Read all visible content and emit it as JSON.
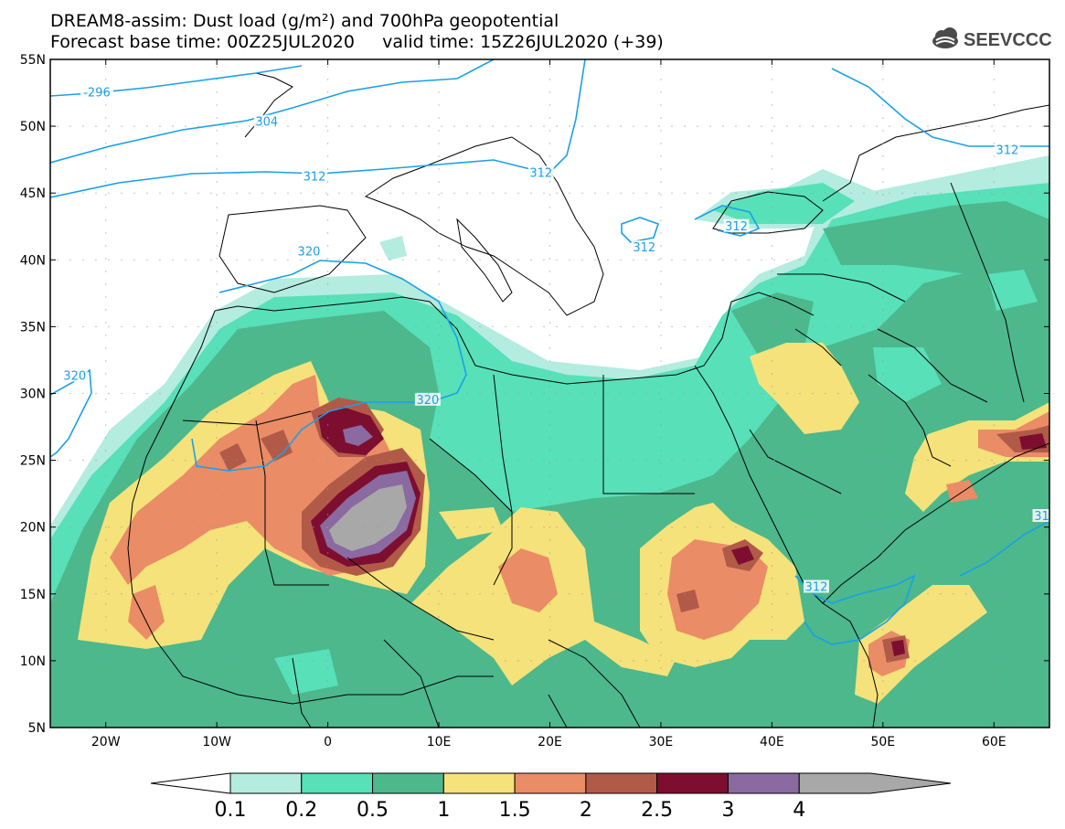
{
  "header": {
    "line1": "DREAM8-assim: Dust load (g/m²) and 700hPa geopotential",
    "line2": "Forecast base time: 00Z25JUL2020     valid time: 15Z26JUL2020 (+39)"
  },
  "logo": {
    "text": "SEEVCCC",
    "icon": "cloud-icon"
  },
  "map": {
    "lon_range": [
      -25,
      65
    ],
    "lat_range": [
      5,
      55
    ],
    "lat_labels": [
      "55N",
      "50N",
      "45N",
      "40N",
      "35N",
      "30N",
      "25N",
      "20N",
      "15N",
      "10N",
      "5N"
    ],
    "lon_labels": [
      "20W",
      "10W",
      "0",
      "10E",
      "20E",
      "30E",
      "40E",
      "50E",
      "60E"
    ],
    "contours": [
      {
        "label": "-296",
        "lon": -20.8,
        "lat": 52.5
      },
      {
        "label": "304",
        "lon": -5.5,
        "lat": 50.3
      },
      {
        "label": "312",
        "lon": -1.2,
        "lat": 46.2
      },
      {
        "label": "312",
        "lon": 19.2,
        "lat": 46.5
      },
      {
        "label": "312",
        "lon": 36.8,
        "lat": 42.5
      },
      {
        "label": "312",
        "lon": 28.5,
        "lat": 40.9
      },
      {
        "label": "312",
        "lon": 61.2,
        "lat": 48.2
      },
      {
        "label": "320",
        "lon": -1.7,
        "lat": 40.6
      },
      {
        "label": "320",
        "lon": -22.8,
        "lat": 31.3
      },
      {
        "label": "320",
        "lon": 9.0,
        "lat": 29.5
      },
      {
        "label": "312",
        "lon": 44.0,
        "lat": 15.5
      },
      {
        "label": "31",
        "lon": 64.3,
        "lat": 20.8
      }
    ]
  },
  "colorbar": {
    "ticks": [
      "0.1",
      "0.2",
      "0.5",
      "1",
      "1.5",
      "2",
      "2.5",
      "3",
      "4"
    ],
    "colors": [
      "#b4ece0",
      "#58e0b8",
      "#4cb88c",
      "#f5e27a",
      "#ea8c66",
      "#b25a48",
      "#7d0e30",
      "#8a6aa0",
      "#a8a8a8"
    ]
  }
}
